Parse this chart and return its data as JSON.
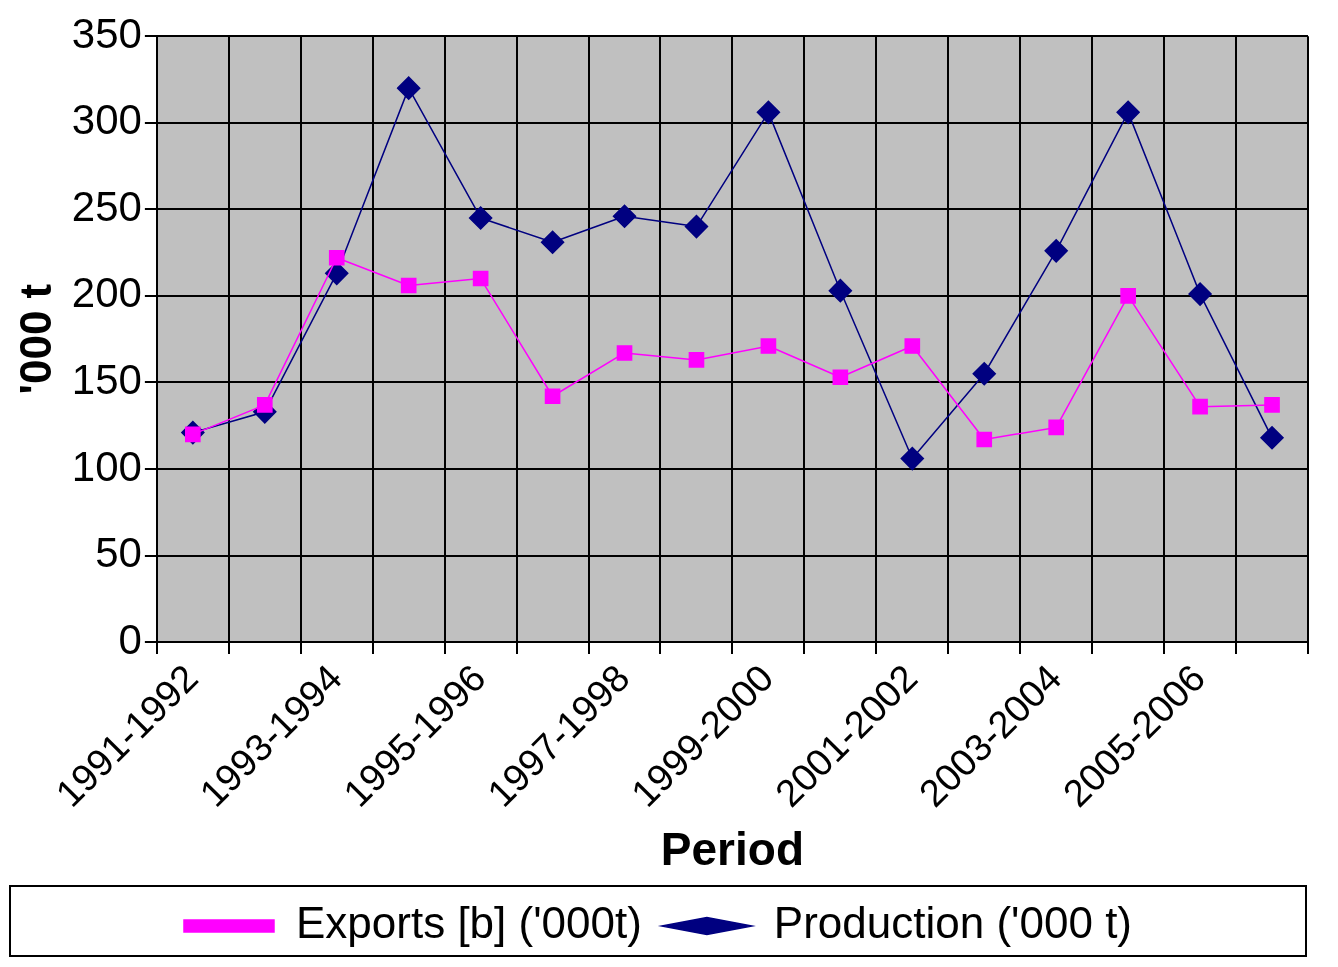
{
  "chart_data": {
    "type": "line",
    "xlabel": "Period",
    "ylabel": "'000 t",
    "categories": [
      "1991-1992",
      null,
      "1993-1994",
      null,
      "1995-1996",
      null,
      "1997-1998",
      null,
      "1999-2000",
      null,
      "2001-2002",
      null,
      "2003-2004",
      null,
      "2005-2006",
      null
    ],
    "series": [
      {
        "name": "Production ('000 t)",
        "color": "#000080",
        "marker": "diamond",
        "values": [
          121,
          133,
          213,
          320,
          245,
          231,
          246,
          240,
          306,
          203,
          106,
          155,
          226,
          306,
          201,
          118
        ]
      },
      {
        "name": "Exports [b] ('000t)",
        "color": "#ff00ff",
        "marker": "square",
        "values": [
          120,
          137,
          222,
          206,
          210,
          142,
          167,
          163,
          171,
          153,
          171,
          117,
          124,
          200,
          136,
          137
        ]
      }
    ],
    "ylim": [
      0,
      350
    ],
    "yticks": [
      0,
      50,
      100,
      150,
      200,
      250,
      300,
      350
    ],
    "grid": true,
    "legend": "bottom"
  }
}
